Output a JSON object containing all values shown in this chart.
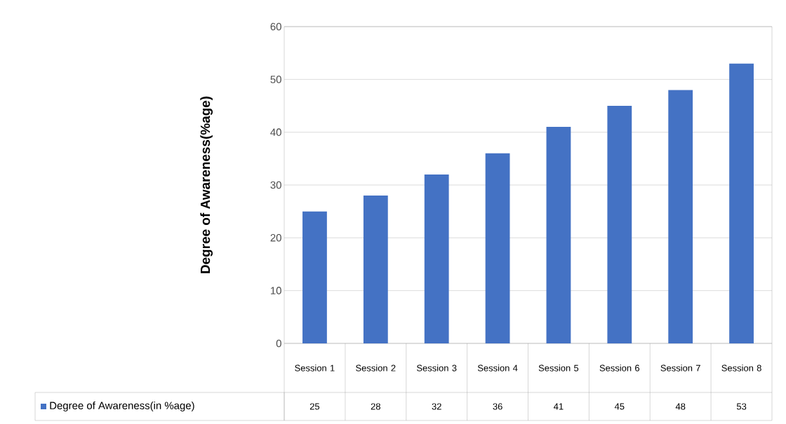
{
  "chart_data": {
    "type": "bar",
    "ylabel": "Degree of Awareness(%age)",
    "categories": [
      "Session 1",
      "Session 2",
      "Session 3",
      "Session 4",
      "Session 5",
      "Session 6",
      "Session 7",
      "Session 8"
    ],
    "series": [
      {
        "name": "Degree of Awareness(in %age)",
        "color": "#4472c4",
        "values": [
          25,
          28,
          32,
          36,
          41,
          45,
          48,
          53
        ]
      }
    ],
    "ylim": [
      0,
      60
    ],
    "yticks": [
      0,
      10,
      20,
      30,
      40,
      50,
      60
    ],
    "grid": "y",
    "legend": "bottom",
    "data_labels": true
  }
}
